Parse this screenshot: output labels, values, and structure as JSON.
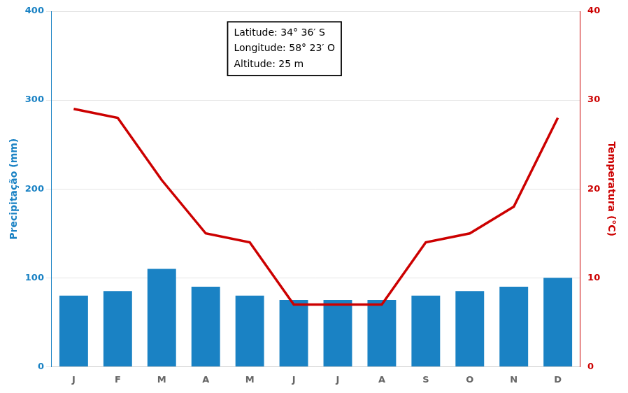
{
  "chart_data": {
    "type": "bar",
    "categories": [
      "J",
      "F",
      "M",
      "A",
      "M",
      "J",
      "J",
      "A",
      "S",
      "O",
      "N",
      "D"
    ],
    "ylabel": "Precipitação (mm)",
    "y2label": "Temperatura (°C)",
    "ylim": [
      0,
      400
    ],
    "yticks": [
      0,
      100,
      200,
      300,
      400
    ],
    "y2lim": [
      0,
      40
    ],
    "y2ticks": [
      0,
      10,
      20,
      30,
      40
    ],
    "grid": true,
    "annotation": "Latitude: 34° 36′ S\nLongitude: 58° 23′ O\nAltitude: 25 m",
    "series": [
      {
        "type": "bar",
        "color": "#1a82c4",
        "values": [
          80,
          85,
          110,
          90,
          80,
          75,
          75,
          75,
          80,
          85,
          90,
          100
        ]
      },
      {
        "type": "line",
        "color": "#cc0000",
        "axis": "y2",
        "values": [
          29,
          28,
          21,
          15,
          14,
          7,
          7,
          7,
          14,
          15,
          18,
          28
        ]
      }
    ]
  }
}
